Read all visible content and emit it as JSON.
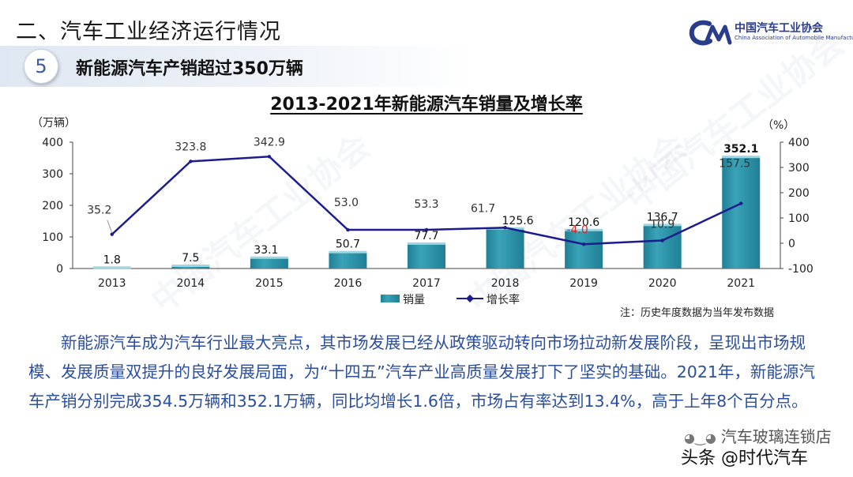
{
  "header": {
    "title": "二、汽车工业经济运行情况",
    "logo_cn": "中国汽车工业协会",
    "logo_en": "China Association of Automobile Manufacturers"
  },
  "section": {
    "number": "5",
    "title": "新能源汽车产销超过350万辆"
  },
  "colors": {
    "bar": "#3aa3b8",
    "bar_dark": "#1f7f95",
    "line": "#1c1c8f",
    "body_text": "#2b4f9e",
    "red_label": "#d42a2a"
  },
  "chart_data": {
    "type": "bar",
    "title": "2013-2021年新能源汽车销量及增长率",
    "y_left_unit": "（万辆）",
    "y_right_unit": "（%）",
    "y_left_range": [
      0,
      400
    ],
    "y_left_ticks": [
      "0",
      "100",
      "200",
      "300",
      "400"
    ],
    "y_right_range": [
      -100,
      400
    ],
    "y_right_ticks": [
      "-100",
      "0",
      "100",
      "200",
      "300",
      "400"
    ],
    "categories": [
      "2013",
      "2014",
      "2015",
      "2016",
      "2017",
      "2018",
      "2019",
      "2020",
      "2021"
    ],
    "series": [
      {
        "name": "销量",
        "type": "bar",
        "axis": "left",
        "values": [
          1.8,
          7.5,
          33.1,
          50.7,
          77.7,
          125.6,
          120.6,
          136.7,
          352.1
        ],
        "labels": [
          "1.8",
          "7.5",
          "33.1",
          "50.7",
          "77.7",
          "125.6",
          "120.6",
          "136.7",
          "352.1"
        ]
      },
      {
        "name": "增长率",
        "type": "line",
        "axis": "right",
        "values": [
          35.2,
          323.8,
          342.9,
          53.0,
          53.3,
          61.7,
          -4.0,
          10.9,
          157.5
        ],
        "labels": [
          "35.2",
          "323.8",
          "342.9",
          "53.0",
          "53.3",
          "61.7",
          "-4.0",
          "10.9",
          "157.5"
        ]
      }
    ],
    "legend": [
      "销量",
      "增长率"
    ],
    "legend_position": "bottom"
  },
  "note": "注：历史年度数据为当年发布数据",
  "body": {
    "paragraph_1": "新能源汽车成为汽车行业最大亮点，其市场发展已经从政策驱动转向市场拉动新发展阶段，呈现出市场规模、发展质量双提升的良好发展局面，为“十四五”汽车产业高质量发展打下了坚实的基础。2021年，新能源汽车产销分别完成354.5万辆和352.1万辆，同比均增长1.6倍，市场占有率达到13.4%，高于上年8个百分点。"
  },
  "watermarks": {
    "source_account": "汽车玻璃连锁店",
    "platform": "头条 @时代汽车"
  }
}
